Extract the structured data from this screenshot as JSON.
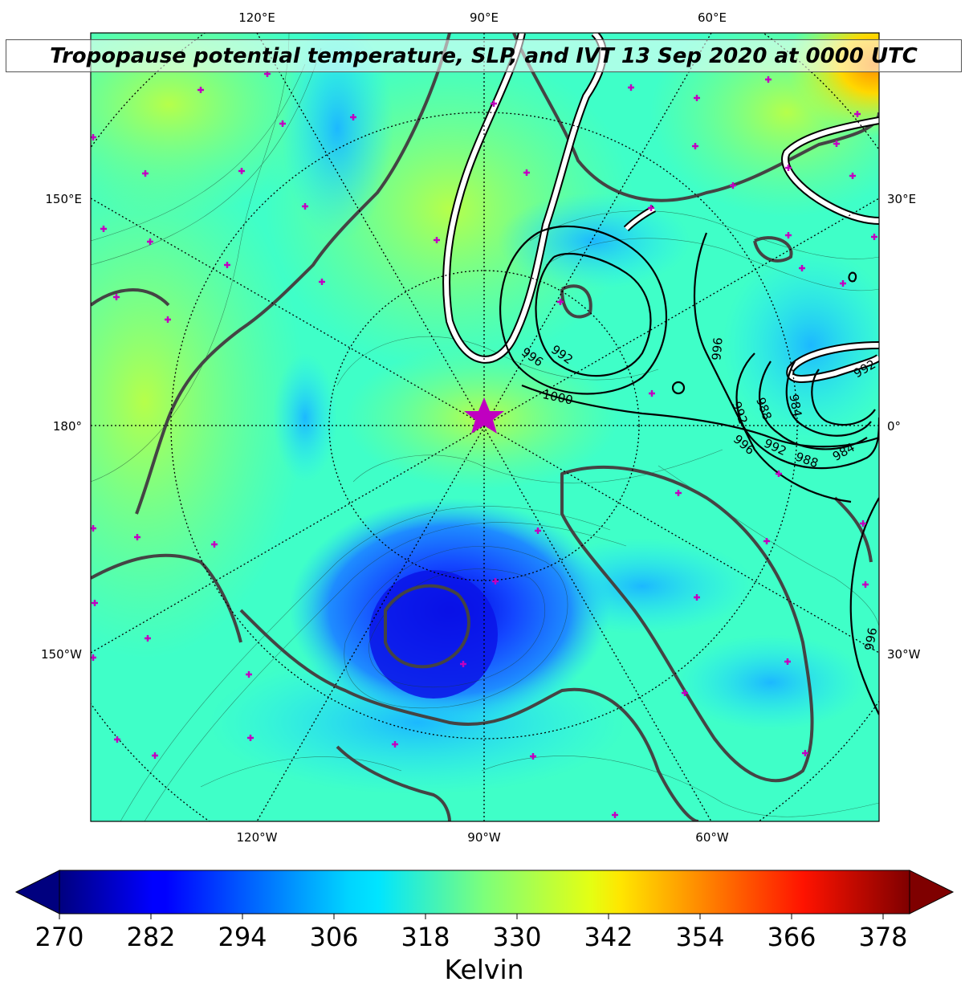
{
  "title": "Tropopause potential temperature, SLP, and IVT 13 Sep 2020 at 0000 UTC",
  "map": {
    "projection": "north-polar-stereographic",
    "top_lon_labels": [
      "120°E",
      "90°E",
      "60°E"
    ],
    "bottom_lon_labels": [
      "120°W",
      "90°W",
      "60°W"
    ],
    "left_lon_labels": [
      "150°E",
      "180°",
      "150°W"
    ],
    "right_lon_labels": [
      "30°E",
      "0°",
      "30°W"
    ],
    "slp_contour_labels": [
      "996",
      "992",
      "1000",
      "996",
      "992",
      "988",
      "984",
      "992",
      "996",
      "988",
      "984",
      "992",
      "996"
    ],
    "marker": "star",
    "marker_color": "#c000c0",
    "station_marker_color": "#c000c0",
    "coastline_color": "#444444",
    "ivt_contour_color": "#ffffff"
  },
  "colorbar": {
    "ticks": [
      "270",
      "282",
      "294",
      "306",
      "318",
      "330",
      "342",
      "354",
      "366",
      "378"
    ],
    "min": 270,
    "max": 378,
    "label": "Kelvin",
    "colormap": "jet",
    "extend": "both"
  }
}
